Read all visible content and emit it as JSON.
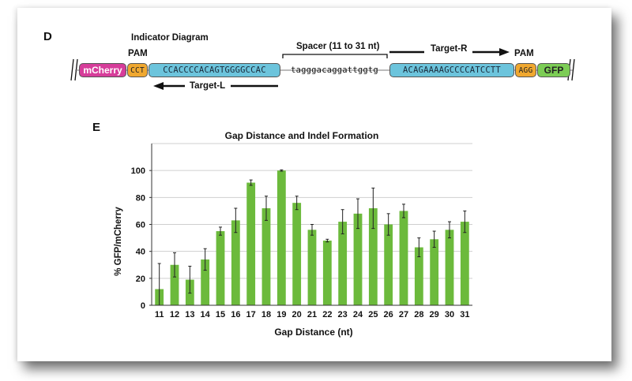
{
  "panel_d": {
    "letter": "D",
    "title": "Indicator Diagram",
    "pam_left_label": "PAM",
    "pam_right_label": "PAM",
    "spacer_label": "Spacer (11 to 31 nt)",
    "target_r_label": "Target-R",
    "target_l_label": "Target-L",
    "blocks": {
      "mcherry": "mCherry",
      "cct": "CCT",
      "left_seq": "CCACCCCACAGTGGGGCCAC",
      "spacer_seq": "tagggacaggattggtg",
      "right_seq": "ACAGAAAAGCCCCATCCTT",
      "agg": "AGG",
      "gfp": "GFP"
    },
    "colors": {
      "mcherry": "#d63d9a",
      "pam": "#f0a830",
      "target": "#6cc4dc",
      "gfp": "#7ccd55"
    }
  },
  "panel_e": {
    "letter": "E"
  },
  "chart_data": {
    "type": "bar",
    "title": "Gap Distance and Indel Formation",
    "xlabel": "Gap Distance (nt)",
    "ylabel": "% GFP/mCherry",
    "ylim": [
      0,
      120
    ],
    "yticks": [
      0,
      20,
      40,
      60,
      80,
      100
    ],
    "grid": true,
    "bar_color": "#6cba3c",
    "categories": [
      "11",
      "12",
      "13",
      "14",
      "15",
      "16",
      "17",
      "18",
      "19",
      "20",
      "21",
      "22",
      "23",
      "24",
      "25",
      "26",
      "27",
      "28",
      "29",
      "30",
      "31"
    ],
    "values": [
      12,
      30,
      19,
      34,
      55,
      63,
      91,
      72,
      100,
      76,
      56,
      48,
      62,
      68,
      72,
      60,
      70,
      43,
      49,
      56,
      62
    ],
    "errors": [
      19,
      9,
      10,
      8,
      3,
      9,
      2,
      9,
      0.5,
      5,
      4,
      1,
      9,
      11,
      15,
      8,
      5,
      7,
      6,
      6,
      8
    ]
  }
}
